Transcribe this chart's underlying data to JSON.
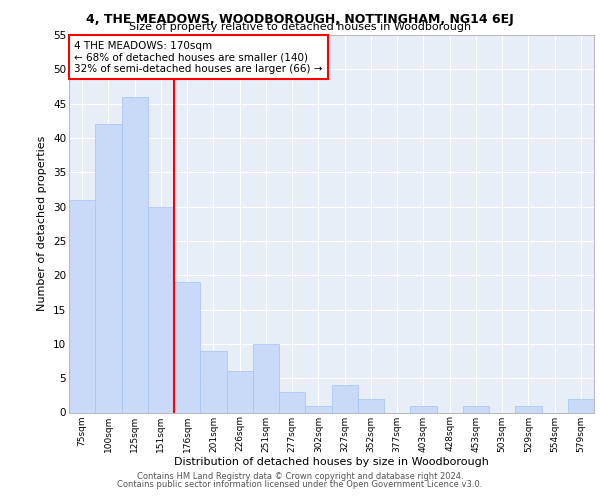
{
  "title": "4, THE MEADOWS, WOODBOROUGH, NOTTINGHAM, NG14 6EJ",
  "subtitle": "Size of property relative to detached houses in Woodborough",
  "xlabel": "Distribution of detached houses by size in Woodborough",
  "ylabel": "Number of detached properties",
  "bar_labels": [
    "75sqm",
    "100sqm",
    "125sqm",
    "151sqm",
    "176sqm",
    "201sqm",
    "226sqm",
    "251sqm",
    "277sqm",
    "302sqm",
    "327sqm",
    "352sqm",
    "377sqm",
    "403sqm",
    "428sqm",
    "453sqm",
    "503sqm",
    "529sqm",
    "554sqm",
    "579sqm"
  ],
  "bar_values": [
    31,
    42,
    46,
    30,
    19,
    9,
    6,
    10,
    3,
    1,
    4,
    2,
    0,
    1,
    0,
    1,
    0,
    1,
    0,
    2
  ],
  "bar_color": "#c9daf8",
  "bar_edge_color": "#a4c2f4",
  "vline_x_index": 4,
  "vline_color": "red",
  "annotation_text": "4 THE MEADOWS: 170sqm\n← 68% of detached houses are smaller (140)\n32% of semi-detached houses are larger (66) →",
  "annotation_box_color": "white",
  "annotation_box_edge_color": "red",
  "ylim": [
    0,
    55
  ],
  "yticks": [
    0,
    5,
    10,
    15,
    20,
    25,
    30,
    35,
    40,
    45,
    50,
    55
  ],
  "background_color": "#e8eef8",
  "grid_color": "white",
  "footer1": "Contains HM Land Registry data © Crown copyright and database right 2024.",
  "footer2": "Contains public sector information licensed under the Open Government Licence v3.0."
}
